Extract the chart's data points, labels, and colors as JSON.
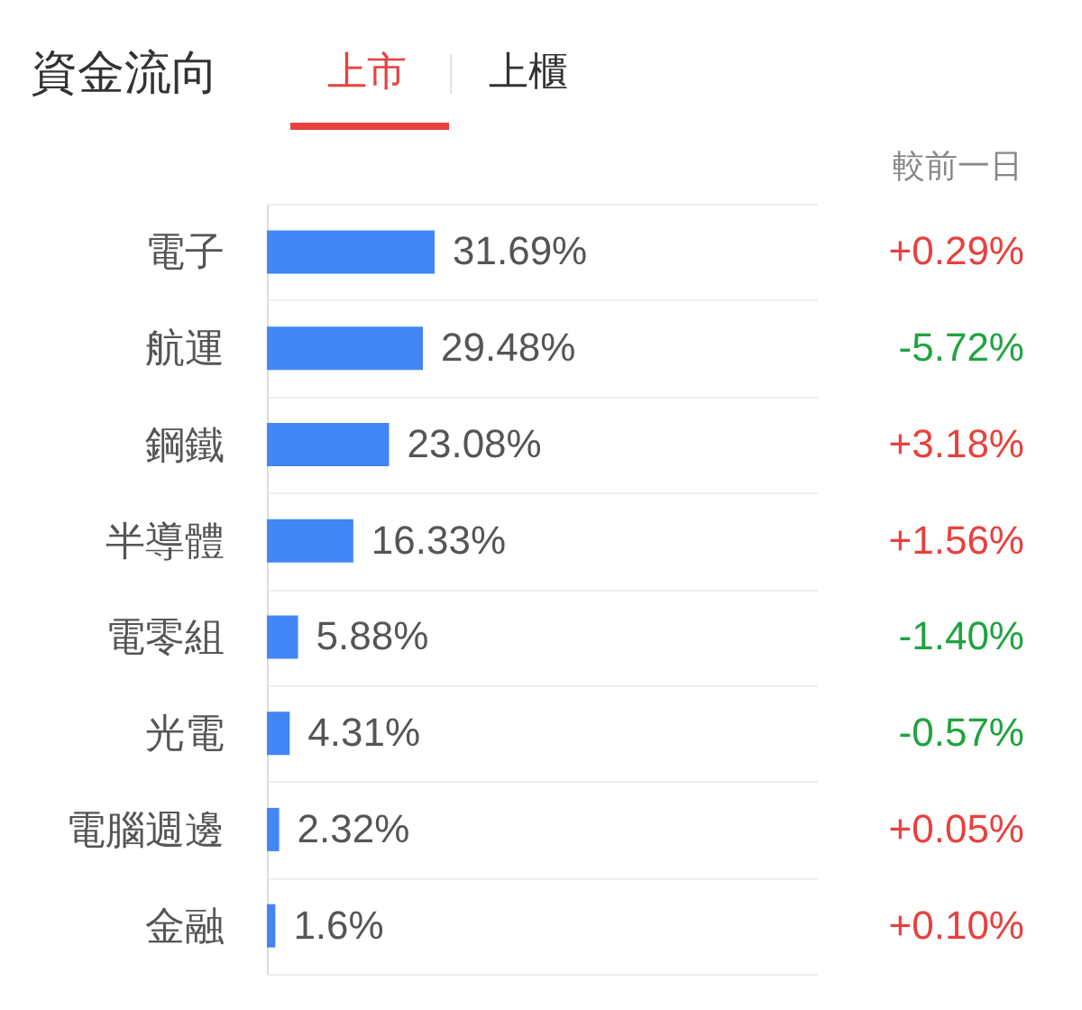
{
  "chart_data": {
    "type": "bar",
    "orientation": "horizontal",
    "title": "資金流向",
    "categories": [
      "電子",
      "航運",
      "鋼鐵",
      "半導體",
      "電零組",
      "光電",
      "電腦週邊",
      "金融"
    ],
    "values": [
      31.69,
      29.48,
      23.08,
      16.33,
      5.88,
      4.31,
      2.32,
      1.6
    ],
    "value_labels": [
      "31.69%",
      "29.48%",
      "23.08%",
      "16.33%",
      "5.88%",
      "4.31%",
      "2.32%",
      "1.6%"
    ],
    "color": "#4285f4",
    "grid": "y",
    "tick_labels": "y",
    "annotations": [
      "上市",
      "上櫃",
      "較前一日",
      "+0.29%",
      "-5.72%",
      "+3.18%",
      "+1.56%",
      "-1.40%",
      "-0.57%",
      "+0.05%",
      "+0.10%"
    ]
  }
}
